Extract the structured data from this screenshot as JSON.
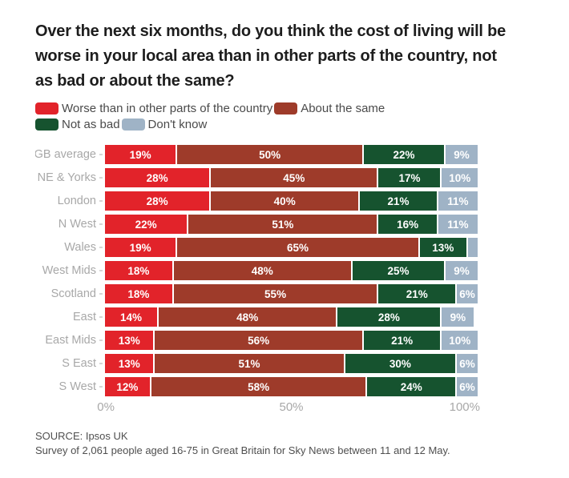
{
  "title": {
    "lines": [
      "Over the next six months, do you think the cost of living will be",
      "worse in your local area than in other parts of the country, not",
      "as bad or about the same?"
    ]
  },
  "legend": {
    "items": [
      {
        "label": "Worse than in other parts of the country",
        "color": "#e2232a"
      },
      {
        "label": "About the same",
        "color": "#9e3b2a"
      },
      {
        "label": "Not as bad",
        "color": "#16532f"
      },
      {
        "label": "Don't know",
        "color": "#9fb3c6"
      }
    ]
  },
  "chart_data": {
    "type": "bar",
    "variant": "horizontal-stacked",
    "stacked": true,
    "unit": "%",
    "xlim": [
      0,
      100
    ],
    "x_ticks": [
      "0%",
      "50%",
      "100%"
    ],
    "grid": false,
    "legend_position": "top",
    "label_min_value": 5,
    "title": "Over the next six months, do you think the cost of living will be worse in your local area than in other parts of the country, not as bad or about the same?",
    "categories": [
      "GB average",
      "NE & Yorks",
      "London",
      "N West",
      "Wales",
      "West Mids",
      "Scotland",
      "East",
      "East Mids",
      "S East",
      "S West"
    ],
    "series": [
      {
        "name": "Worse than in other parts of the country",
        "color": "#e2232a",
        "values": [
          19,
          28,
          28,
          22,
          19,
          18,
          18,
          14,
          13,
          13,
          12
        ]
      },
      {
        "name": "About the same",
        "color": "#9e3b2a",
        "values": [
          50,
          45,
          40,
          51,
          65,
          48,
          55,
          48,
          56,
          51,
          58
        ]
      },
      {
        "name": "Not as bad",
        "color": "#16532f",
        "values": [
          22,
          17,
          21,
          16,
          13,
          25,
          21,
          28,
          21,
          30,
          24
        ]
      },
      {
        "name": "Don't know",
        "color": "#9fb3c6",
        "values": [
          9,
          10,
          11,
          11,
          3,
          9,
          6,
          9,
          10,
          6,
          6
        ]
      }
    ]
  },
  "footer": {
    "source": "SOURCE: Ipsos UK",
    "note": "Survey of 2,061 people aged 16-75 in Great Britain for Sky News between 11 and 12 May."
  }
}
